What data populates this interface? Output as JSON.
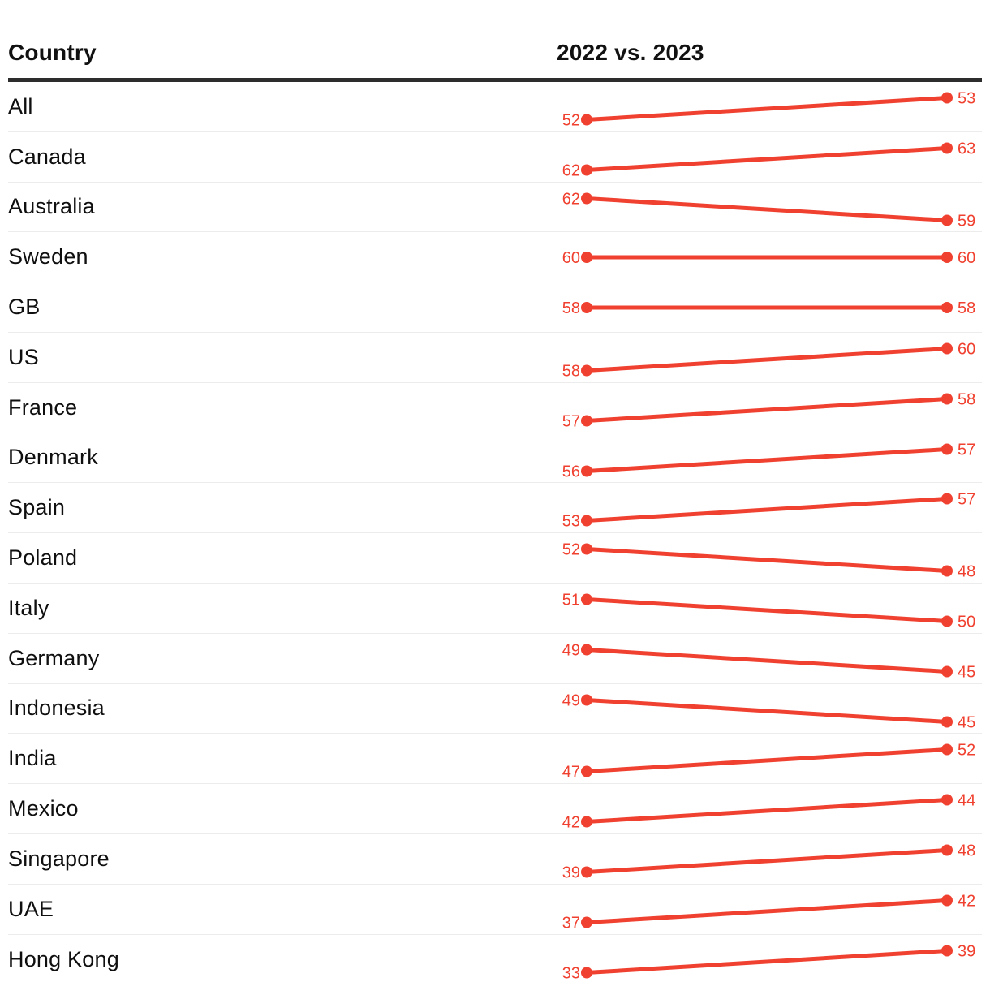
{
  "header": {
    "country_label": "Country",
    "comparison_label": "2022 vs. 2023"
  },
  "colors": {
    "accent": "#f0402f",
    "header_rule": "#2d2d2d",
    "row_divider": "#ececec",
    "text": "#0f0f0f"
  },
  "chart_data": {
    "type": "line",
    "subtype": "slope",
    "title": "2022 vs. 2023",
    "x": [
      "2022",
      "2023"
    ],
    "legend_position": "none",
    "grid": "row-dividers",
    "value_range_note": "each row's two values are shown as a slope segment; higher value drawn higher in the row band",
    "series": [
      {
        "name": "All",
        "values": [
          52,
          53
        ]
      },
      {
        "name": "Canada",
        "values": [
          62,
          63
        ]
      },
      {
        "name": "Australia",
        "values": [
          62,
          59
        ]
      },
      {
        "name": "Sweden",
        "values": [
          60,
          60
        ]
      },
      {
        "name": "GB",
        "values": [
          58,
          58
        ]
      },
      {
        "name": "US",
        "values": [
          58,
          60
        ]
      },
      {
        "name": "France",
        "values": [
          57,
          58
        ]
      },
      {
        "name": "Denmark",
        "values": [
          56,
          57
        ]
      },
      {
        "name": "Spain",
        "values": [
          53,
          57
        ]
      },
      {
        "name": "Poland",
        "values": [
          52,
          48
        ]
      },
      {
        "name": "Italy",
        "values": [
          51,
          50
        ]
      },
      {
        "name": "Germany",
        "values": [
          49,
          45
        ]
      },
      {
        "name": "Indonesia",
        "values": [
          49,
          45
        ]
      },
      {
        "name": "India",
        "values": [
          47,
          52
        ]
      },
      {
        "name": "Mexico",
        "values": [
          42,
          44
        ]
      },
      {
        "name": "Singapore",
        "values": [
          39,
          48
        ]
      },
      {
        "name": "UAE",
        "values": [
          37,
          42
        ]
      },
      {
        "name": "Hong Kong",
        "values": [
          33,
          39
        ]
      }
    ]
  }
}
